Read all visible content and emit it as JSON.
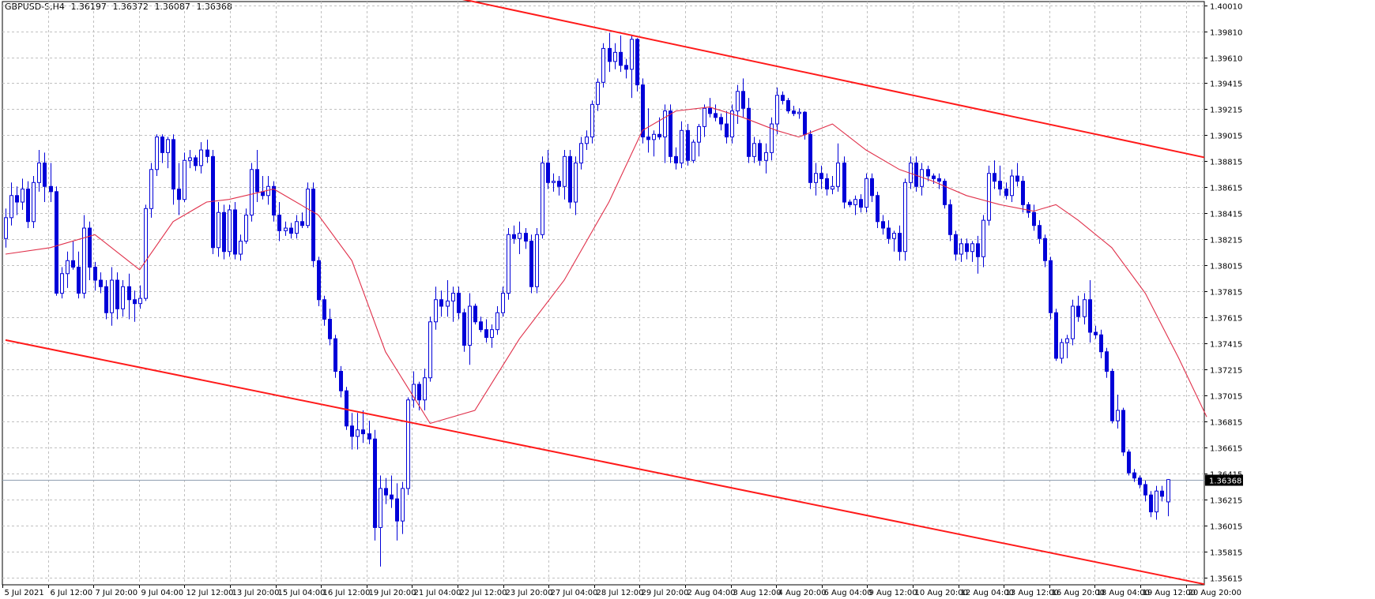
{
  "header": {
    "symbol": "GBPUSD-S,H4",
    "open": "1.36197",
    "high": "1.36372",
    "low": "1.36087",
    "close": "1.36368"
  },
  "colors": {
    "background": "#ffffff",
    "grid": "#c0c0c0",
    "candle": "#0000d8",
    "moving_average": "#e0304a",
    "channel": "#ff1a1a",
    "price_line": "#8f9fb0",
    "price_tag_bg": "#000000",
    "price_tag_fg": "#ffffff"
  },
  "chart_data": {
    "type": "candlestick",
    "grid": true,
    "y_ticks": [
      "1.40010",
      "1.39810",
      "1.39610",
      "1.39415",
      "1.39215",
      "1.39015",
      "1.38815",
      "1.38615",
      "1.38415",
      "1.38215",
      "1.38015",
      "1.37815",
      "1.37615",
      "1.37415",
      "1.37215",
      "1.37015",
      "1.36815",
      "1.36615",
      "1.36415",
      "1.36215",
      "1.36015",
      "1.35815",
      "1.35615"
    ],
    "ylim": [
      1.3556,
      1.4004
    ],
    "x_ticks": [
      "5 Jul 2021",
      "6 Jul 12:00",
      "7 Jul 20:00",
      "9 Jul 04:00",
      "12 Jul 12:00",
      "13 Jul 20:00",
      "15 Jul 04:00",
      "16 Jul 12:00",
      "19 Jul 20:00",
      "21 Jul 04:00",
      "22 Jul 12:00",
      "23 Jul 20:00",
      "27 Jul 04:00",
      "28 Jul 12:00",
      "29 Jul 20:00",
      "2 Aug 04:00",
      "3 Aug 12:00",
      "4 Aug 20:00",
      "6 Aug 04:00",
      "9 Aug 12:00",
      "10 Aug 20:00",
      "12 Aug 04:00",
      "13 Aug 12:00",
      "16 Aug 20:00",
      "18 Aug 04:00",
      "19 Aug 12:00",
      "20 Aug 20:00"
    ],
    "current_price": "1.36368",
    "candles": [
      [
        1.3822,
        1.3845,
        1.3815,
        1.3838
      ],
      [
        1.3838,
        1.3865,
        1.3832,
        1.3855
      ],
      [
        1.3855,
        1.3862,
        1.384,
        1.385
      ],
      [
        1.385,
        1.3868,
        1.3844,
        1.386
      ],
      [
        1.386,
        1.3866,
        1.383,
        1.3835
      ],
      [
        1.3835,
        1.387,
        1.383,
        1.3865
      ],
      [
        1.3865,
        1.389,
        1.3858,
        1.388
      ],
      [
        1.388,
        1.3888,
        1.385,
        1.3862
      ],
      [
        1.3862,
        1.388,
        1.385,
        1.3858
      ],
      [
        1.3858,
        1.3862,
        1.3778,
        1.378
      ],
      [
        1.378,
        1.38,
        1.3776,
        1.3795
      ],
      [
        1.3795,
        1.3812,
        1.3784,
        1.3805
      ],
      [
        1.3805,
        1.382,
        1.3798,
        1.38
      ],
      [
        1.38,
        1.3812,
        1.3776,
        1.378
      ],
      [
        1.378,
        1.384,
        1.3776,
        1.383
      ],
      [
        1.383,
        1.3835,
        1.379,
        1.38
      ],
      [
        1.38,
        1.3804,
        1.3782,
        1.379
      ],
      [
        1.379,
        1.3796,
        1.378,
        1.3785
      ],
      [
        1.3785,
        1.379,
        1.376,
        1.3765
      ],
      [
        1.3765,
        1.38,
        1.3755,
        1.379
      ],
      [
        1.379,
        1.3796,
        1.376,
        1.3768
      ],
      [
        1.3768,
        1.379,
        1.3762,
        1.3785
      ],
      [
        1.3785,
        1.3795,
        1.376,
        1.3775
      ],
      [
        1.3775,
        1.3782,
        1.3758,
        1.3772
      ],
      [
        1.3772,
        1.3786,
        1.3768,
        1.3776
      ],
      [
        1.3776,
        1.3848,
        1.3774,
        1.3845
      ],
      [
        1.3845,
        1.388,
        1.3838,
        1.3875
      ],
      [
        1.3875,
        1.3902,
        1.387,
        1.39
      ],
      [
        1.39,
        1.3902,
        1.388,
        1.3888
      ],
      [
        1.3888,
        1.39,
        1.3876,
        1.3898
      ],
      [
        1.3898,
        1.3902,
        1.3848,
        1.386
      ],
      [
        1.386,
        1.388,
        1.384,
        1.3852
      ],
      [
        1.3852,
        1.3888,
        1.385,
        1.3882
      ],
      [
        1.3882,
        1.389,
        1.3876,
        1.3884
      ],
      [
        1.3884,
        1.3886,
        1.3874,
        1.3878
      ],
      [
        1.3878,
        1.3896,
        1.3872,
        1.389
      ],
      [
        1.389,
        1.3898,
        1.388,
        1.3885
      ],
      [
        1.3885,
        1.389,
        1.381,
        1.3815
      ],
      [
        1.3815,
        1.385,
        1.3808,
        1.3842
      ],
      [
        1.3842,
        1.3848,
        1.3806,
        1.3812
      ],
      [
        1.3812,
        1.3848,
        1.3808,
        1.3844
      ],
      [
        1.3844,
        1.385,
        1.3806,
        1.381
      ],
      [
        1.381,
        1.3825,
        1.3805,
        1.382
      ],
      [
        1.382,
        1.3845,
        1.3818,
        1.384
      ],
      [
        1.384,
        1.388,
        1.3835,
        1.3875
      ],
      [
        1.3875,
        1.389,
        1.385,
        1.3858
      ],
      [
        1.3858,
        1.387,
        1.3852,
        1.3855
      ],
      [
        1.3855,
        1.387,
        1.3848,
        1.3862
      ],
      [
        1.3862,
        1.3866,
        1.3835,
        1.384
      ],
      [
        1.384,
        1.385,
        1.382,
        1.3828
      ],
      [
        1.3828,
        1.3835,
        1.3824,
        1.383
      ],
      [
        1.383,
        1.3834,
        1.3822,
        1.3826
      ],
      [
        1.3826,
        1.384,
        1.3822,
        1.3835
      ],
      [
        1.3835,
        1.3842,
        1.383,
        1.3832
      ],
      [
        1.3832,
        1.3865,
        1.383,
        1.386
      ],
      [
        1.386,
        1.3865,
        1.38,
        1.3805
      ],
      [
        1.3805,
        1.3808,
        1.377,
        1.3775
      ],
      [
        1.3775,
        1.3778,
        1.3755,
        1.376
      ],
      [
        1.376,
        1.3768,
        1.374,
        1.3745
      ],
      [
        1.3745,
        1.3748,
        1.3715,
        1.372
      ],
      [
        1.372,
        1.3724,
        1.37,
        1.3705
      ],
      [
        1.3705,
        1.3708,
        1.3675,
        1.3678
      ],
      [
        1.3678,
        1.3688,
        1.366,
        1.367
      ],
      [
        1.367,
        1.3688,
        1.366,
        1.3675
      ],
      [
        1.3675,
        1.369,
        1.3665,
        1.3672
      ],
      [
        1.3672,
        1.3682,
        1.3664,
        1.3668
      ],
      [
        1.3668,
        1.3675,
        1.359,
        1.36
      ],
      [
        1.36,
        1.364,
        1.357,
        1.363
      ],
      [
        1.363,
        1.3638,
        1.3618,
        1.3625
      ],
      [
        1.3625,
        1.364,
        1.3615,
        1.3622
      ],
      [
        1.3622,
        1.3634,
        1.359,
        1.3605
      ],
      [
        1.3605,
        1.3635,
        1.3595,
        1.363
      ],
      [
        1.363,
        1.37,
        1.3625,
        1.3698
      ],
      [
        1.3698,
        1.372,
        1.3692,
        1.371
      ],
      [
        1.371,
        1.3712,
        1.369,
        1.3698
      ],
      [
        1.3698,
        1.3722,
        1.369,
        1.3715
      ],
      [
        1.3715,
        1.3762,
        1.3712,
        1.3758
      ],
      [
        1.3758,
        1.3785,
        1.3752,
        1.3775
      ],
      [
        1.3775,
        1.3782,
        1.3762,
        1.377
      ],
      [
        1.377,
        1.379,
        1.3762,
        1.3774
      ],
      [
        1.3774,
        1.3785,
        1.3758,
        1.378
      ],
      [
        1.378,
        1.3785,
        1.376,
        1.3765
      ],
      [
        1.3765,
        1.3768,
        1.3735,
        1.374
      ],
      [
        1.374,
        1.378,
        1.3725,
        1.377
      ],
      [
        1.377,
        1.3772,
        1.3756,
        1.3758
      ],
      [
        1.3758,
        1.3762,
        1.375,
        1.3752
      ],
      [
        1.3752,
        1.376,
        1.3742,
        1.3746
      ],
      [
        1.3746,
        1.3756,
        1.3738,
        1.3752
      ],
      [
        1.3752,
        1.377,
        1.3748,
        1.3765
      ],
      [
        1.3765,
        1.3785,
        1.3762,
        1.378
      ],
      [
        1.378,
        1.383,
        1.3775,
        1.3825
      ],
      [
        1.3825,
        1.3832,
        1.3818,
        1.3822
      ],
      [
        1.3822,
        1.3835,
        1.381,
        1.3826
      ],
      [
        1.3826,
        1.383,
        1.3814,
        1.382
      ],
      [
        1.382,
        1.3825,
        1.378,
        1.3785
      ],
      [
        1.3785,
        1.383,
        1.378,
        1.3825
      ],
      [
        1.3825,
        1.3885,
        1.3822,
        1.388
      ],
      [
        1.388,
        1.389,
        1.386,
        1.3865
      ],
      [
        1.3865,
        1.3872,
        1.3858,
        1.3866
      ],
      [
        1.3866,
        1.387,
        1.3855,
        1.3862
      ],
      [
        1.3862,
        1.389,
        1.3852,
        1.3885
      ],
      [
        1.3885,
        1.389,
        1.3845,
        1.385
      ],
      [
        1.385,
        1.3885,
        1.384,
        1.388
      ],
      [
        1.388,
        1.39,
        1.3875,
        1.3895
      ],
      [
        1.3895,
        1.3905,
        1.389,
        1.39
      ],
      [
        1.39,
        1.3928,
        1.3895,
        1.3925
      ],
      [
        1.3925,
        1.3945,
        1.392,
        1.3942
      ],
      [
        1.3942,
        1.3972,
        1.3938,
        1.3968
      ],
      [
        1.3968,
        1.398,
        1.395,
        1.3958
      ],
      [
        1.3958,
        1.3972,
        1.3952,
        1.3965
      ],
      [
        1.3965,
        1.3978,
        1.395,
        1.3955
      ],
      [
        1.3955,
        1.396,
        1.3945,
        1.3952
      ],
      [
        1.3952,
        1.3978,
        1.393,
        1.3975
      ],
      [
        1.3975,
        1.3976,
        1.3935,
        1.394
      ],
      [
        1.394,
        1.3945,
        1.3895,
        1.39
      ],
      [
        1.39,
        1.3922,
        1.3888,
        1.3898
      ],
      [
        1.3898,
        1.3905,
        1.3885,
        1.3902
      ],
      [
        1.3902,
        1.3915,
        1.3898,
        1.39
      ],
      [
        1.39,
        1.3925,
        1.388,
        1.392
      ],
      [
        1.392,
        1.3925,
        1.388,
        1.3885
      ],
      [
        1.3885,
        1.3892,
        1.3875,
        1.388
      ],
      [
        1.388,
        1.3912,
        1.3876,
        1.3905
      ],
      [
        1.3905,
        1.391,
        1.3878,
        1.3882
      ],
      [
        1.3882,
        1.3898,
        1.388,
        1.3896
      ],
      [
        1.3896,
        1.391,
        1.3885,
        1.3908
      ],
      [
        1.3908,
        1.3925,
        1.39,
        1.3922
      ],
      [
        1.3922,
        1.393,
        1.3915,
        1.3918
      ],
      [
        1.3918,
        1.3925,
        1.3912,
        1.3915
      ],
      [
        1.3915,
        1.3918,
        1.3905,
        1.391
      ],
      [
        1.391,
        1.392,
        1.3895,
        1.39
      ],
      [
        1.39,
        1.3925,
        1.3895,
        1.392
      ],
      [
        1.392,
        1.394,
        1.391,
        1.3935
      ],
      [
        1.3935,
        1.3945,
        1.3915,
        1.3922
      ],
      [
        1.3922,
        1.393,
        1.388,
        1.3885
      ],
      [
        1.3885,
        1.39,
        1.388,
        1.3895
      ],
      [
        1.3895,
        1.3898,
        1.3878,
        1.3882
      ],
      [
        1.3882,
        1.3895,
        1.3872,
        1.3888
      ],
      [
        1.3888,
        1.3915,
        1.3882,
        1.391
      ],
      [
        1.391,
        1.3938,
        1.3902,
        1.3932
      ],
      [
        1.3932,
        1.3935,
        1.3925,
        1.3928
      ],
      [
        1.3928,
        1.393,
        1.3918,
        1.392
      ],
      [
        1.392,
        1.3924,
        1.3916,
        1.3918
      ],
      [
        1.3918,
        1.3922,
        1.3914,
        1.3919
      ],
      [
        1.3919,
        1.392,
        1.3898,
        1.3902
      ],
      [
        1.3902,
        1.3905,
        1.386,
        1.3865
      ],
      [
        1.3865,
        1.388,
        1.3855,
        1.3872
      ],
      [
        1.3872,
        1.3878,
        1.386,
        1.3868
      ],
      [
        1.3868,
        1.3872,
        1.3855,
        1.386
      ],
      [
        1.386,
        1.387,
        1.3856,
        1.3862
      ],
      [
        1.3862,
        1.3895,
        1.3858,
        1.388
      ],
      [
        1.388,
        1.3885,
        1.3845,
        1.385
      ],
      [
        1.385,
        1.3852,
        1.3846,
        1.3848
      ],
      [
        1.3848,
        1.3855,
        1.384,
        1.3852
      ],
      [
        1.3852,
        1.3856,
        1.3842,
        1.3846
      ],
      [
        1.3846,
        1.3872,
        1.3842,
        1.3868
      ],
      [
        1.3868,
        1.3872,
        1.385,
        1.3855
      ],
      [
        1.3855,
        1.3858,
        1.383,
        1.3835
      ],
      [
        1.3835,
        1.384,
        1.3825,
        1.383
      ],
      [
        1.383,
        1.3836,
        1.3818,
        1.3822
      ],
      [
        1.3822,
        1.3828,
        1.3812,
        1.3826
      ],
      [
        1.3826,
        1.3832,
        1.3805,
        1.3812
      ],
      [
        1.3812,
        1.3868,
        1.3805,
        1.3865
      ],
      [
        1.3865,
        1.3885,
        1.386,
        1.388
      ],
      [
        1.388,
        1.3885,
        1.3858,
        1.3862
      ],
      [
        1.3862,
        1.388,
        1.3855,
        1.3875
      ],
      [
        1.3875,
        1.3878,
        1.3866,
        1.387
      ],
      [
        1.387,
        1.3872,
        1.3864,
        1.3868
      ],
      [
        1.3868,
        1.3872,
        1.386,
        1.3866
      ],
      [
        1.3866,
        1.3868,
        1.3845,
        1.3848
      ],
      [
        1.3848,
        1.3852,
        1.382,
        1.3825
      ],
      [
        1.3825,
        1.3828,
        1.3805,
        1.381
      ],
      [
        1.381,
        1.3822,
        1.3804,
        1.3818
      ],
      [
        1.3818,
        1.3822,
        1.3806,
        1.3812
      ],
      [
        1.3812,
        1.382,
        1.3804,
        1.3818
      ],
      [
        1.3818,
        1.3824,
        1.3795,
        1.3808
      ],
      [
        1.3808,
        1.384,
        1.38,
        1.3836
      ],
      [
        1.3836,
        1.3878,
        1.3832,
        1.3872
      ],
      [
        1.3872,
        1.3882,
        1.386,
        1.3866
      ],
      [
        1.3866,
        1.3878,
        1.3855,
        1.386
      ],
      [
        1.386,
        1.3865,
        1.3852,
        1.3855
      ],
      [
        1.3855,
        1.3875,
        1.385,
        1.387
      ],
      [
        1.387,
        1.388,
        1.3862,
        1.3866
      ],
      [
        1.3866,
        1.387,
        1.3842,
        1.3848
      ],
      [
        1.3848,
        1.385,
        1.3838,
        1.3842
      ],
      [
        1.3842,
        1.3848,
        1.3828,
        1.3832
      ],
      [
        1.3832,
        1.3836,
        1.3818,
        1.3822
      ],
      [
        1.3822,
        1.3825,
        1.38,
        1.3805
      ],
      [
        1.3805,
        1.3808,
        1.376,
        1.3765
      ],
      [
        1.3765,
        1.3768,
        1.3728,
        1.373
      ],
      [
        1.373,
        1.3745,
        1.3726,
        1.3742
      ],
      [
        1.3742,
        1.3748,
        1.373,
        1.3745
      ],
      [
        1.3745,
        1.3775,
        1.374,
        1.377
      ],
      [
        1.377,
        1.3778,
        1.3758,
        1.3762
      ],
      [
        1.3762,
        1.378,
        1.3756,
        1.3775
      ],
      [
        1.3775,
        1.379,
        1.3742,
        1.375
      ],
      [
        1.375,
        1.3755,
        1.3745,
        1.3748
      ],
      [
        1.3748,
        1.3752,
        1.373,
        1.3735
      ],
      [
        1.3735,
        1.3738,
        1.3715,
        1.372
      ],
      [
        1.372,
        1.3722,
        1.368,
        1.3682
      ],
      [
        1.3682,
        1.3702,
        1.3676,
        1.369
      ],
      [
        1.369,
        1.3692,
        1.3655,
        1.3658
      ],
      [
        1.3658,
        1.366,
        1.364,
        1.3642
      ],
      [
        1.3642,
        1.3645,
        1.3635,
        1.3638
      ],
      [
        1.3638,
        1.364,
        1.363,
        1.3633
      ],
      [
        1.3633,
        1.3636,
        1.362,
        1.3625
      ],
      [
        1.3625,
        1.3628,
        1.3608,
        1.3612
      ],
      [
        1.3612,
        1.3632,
        1.3606,
        1.3628
      ],
      [
        1.3628,
        1.3632,
        1.362,
        1.3624
      ],
      [
        1.36197,
        1.36372,
        1.36087,
        1.36368
      ]
    ],
    "moving_average": [
      [
        0,
        1.381
      ],
      [
        8,
        1.3815
      ],
      [
        16,
        1.3825
      ],
      [
        24,
        1.3798
      ],
      [
        30,
        1.3835
      ],
      [
        36,
        1.385
      ],
      [
        40,
        1.3852
      ],
      [
        48,
        1.386
      ],
      [
        56,
        1.384
      ],
      [
        62,
        1.3805
      ],
      [
        68,
        1.3735
      ],
      [
        76,
        1.368
      ],
      [
        84,
        1.369
      ],
      [
        92,
        1.3745
      ],
      [
        100,
        1.379
      ],
      [
        108,
        1.385
      ],
      [
        114,
        1.3905
      ],
      [
        120,
        1.392
      ],
      [
        126,
        1.3923
      ],
      [
        132,
        1.3915
      ],
      [
        138,
        1.3905
      ],
      [
        142,
        1.39
      ],
      [
        148,
        1.391
      ],
      [
        154,
        1.389
      ],
      [
        160,
        1.3875
      ],
      [
        166,
        1.3866
      ],
      [
        172,
        1.3855
      ],
      [
        178,
        1.3848
      ],
      [
        184,
        1.3843
      ],
      [
        188,
        1.3848
      ],
      [
        192,
        1.3836
      ],
      [
        198,
        1.3815
      ],
      [
        204,
        1.378
      ],
      [
        210,
        1.373
      ],
      [
        215,
        1.3685
      ]
    ],
    "channel_upper": [
      [
        1.4012,
        75
      ],
      [
        1.3883,
        216
      ]
    ],
    "channel_lower": [
      [
        1.3744,
        0
      ],
      [
        1.3557,
        214
      ]
    ]
  }
}
